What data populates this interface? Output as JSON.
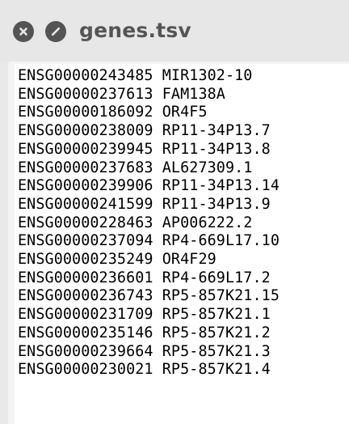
{
  "window": {
    "title": "genes.tsv",
    "buttons": [
      {
        "name": "close-button",
        "icon": "close-icon"
      },
      {
        "name": "stop-button",
        "icon": "stop-icon"
      }
    ]
  },
  "file": {
    "lines": [
      "ENSG00000243485 MIR1302-10",
      "ENSG00000237613 FAM138A",
      "ENSG00000186092 OR4F5",
      "ENSG00000238009 RP11-34P13.7",
      "ENSG00000239945 RP11-34P13.8",
      "ENSG00000237683 AL627309.1",
      "ENSG00000239906 RP11-34P13.14",
      "ENSG00000241599 RP11-34P13.9",
      "ENSG00000228463 AP006222.2",
      "ENSG00000237094 RP4-669L17.10",
      "ENSG00000235249 OR4F29",
      "ENSG00000236601 RP4-669L17.2",
      "ENSG00000236743 RP5-857K21.15",
      "ENSG00000231709 RP5-857K21.1",
      "ENSG00000235146 RP5-857K21.2",
      "ENSG00000239664 RP5-857K21.3",
      "ENSG00000230021 RP5-857K21.4"
    ]
  },
  "colors": {
    "titlebar": "#e7e7e7",
    "title_text": "#555555",
    "icon_fill": "#545454",
    "content_bg": "#ffffff"
  }
}
